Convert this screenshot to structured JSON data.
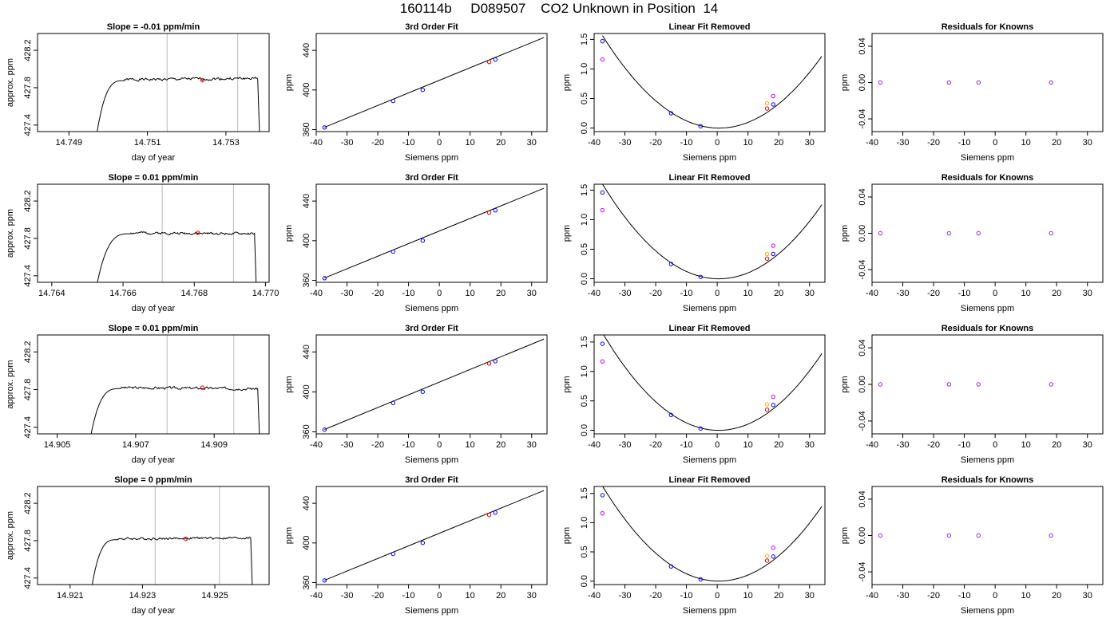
{
  "figure": {
    "title": "160114b     D089507    CO2 Unknown in Position  14"
  },
  "chart_data": [
    {
      "type": "line",
      "title": "Slope =  -0.01  ppm/min",
      "xlabel": "day of year",
      "ylabel": "approx. ppm",
      "xlim": [
        14.7482,
        14.7541
      ],
      "ylim": [
        427.33,
        428.38
      ],
      "xticks": [
        14.749,
        14.751,
        14.753
      ],
      "xtick_labels": [
        "14.749",
        "14.751",
        "14.753"
      ],
      "yticks": [
        427.4,
        427.8,
        428.2
      ],
      "ytick_labels": [
        "427.4",
        "427.8",
        "428.2"
      ],
      "vlines": [
        14.7515,
        14.7533
      ],
      "marker": {
        "x": 14.7524,
        "y": 427.88,
        "color": "#e00000"
      },
      "trace": {
        "start": 14.74965,
        "rise_end": 14.7504,
        "end": 14.75387,
        "level": 427.885,
        "tail": 427.9,
        "drift": 0.0,
        "amp": 0.012,
        "seed": 1
      }
    },
    {
      "type": "scatter",
      "title": "3rd Order Fit",
      "xlabel": "Siemens ppm",
      "ylabel": "ppm",
      "xlim": [
        -40,
        35
      ],
      "ylim": [
        358,
        457
      ],
      "xticks": [
        -40,
        -30,
        -20,
        -10,
        0,
        10,
        20,
        30
      ],
      "xtick_labels": [
        "-40",
        "-30",
        "-20",
        "-10",
        "0",
        "10",
        "20",
        "30"
      ],
      "yticks": [
        360,
        400,
        440
      ],
      "ytick_labels": [
        "360",
        "400",
        "440"
      ],
      "fit_line": {
        "x": [
          -37.3,
          34
        ],
        "y": [
          362.4,
          452.9
        ]
      },
      "series": [
        {
          "name": "",
          "color": "#0000ff",
          "x": [
            -37.3,
            -15,
            -5.4,
            18.2
          ],
          "y": [
            362.2,
            388.9,
            400.1,
            430.7
          ]
        },
        {
          "name": "",
          "color": "#e00000",
          "x": [
            16.2
          ],
          "y": [
            428.3
          ]
        }
      ]
    },
    {
      "type": "scatter",
      "title": "Linear Fit Removed",
      "xlabel": "Siemens ppm",
      "ylabel": "ppm",
      "xlim": [
        -40,
        35
      ],
      "ylim": [
        -0.06,
        1.6
      ],
      "xticks": [
        -40,
        -30,
        -20,
        -10,
        0,
        10,
        20,
        30
      ],
      "xtick_labels": [
        "-40",
        "-30",
        "-20",
        "-10",
        "0",
        "10",
        "20",
        "30"
      ],
      "yticks": [
        0.0,
        0.5,
        1.0,
        1.5
      ],
      "ytick_labels": [
        "0.0",
        "0.5",
        "1.0",
        "1.5"
      ],
      "curve": {
        "a": 0.00109,
        "b": -0.0013,
        "xmin": -37.3,
        "xmax": 34
      },
      "series": [
        {
          "name": "",
          "color": "#0000ff",
          "x": [
            -37.3,
            -15,
            -5.4,
            18.2
          ],
          "y": [
            1.47,
            0.25,
            0.03,
            0.4
          ]
        },
        {
          "name": "",
          "color": "#cc00ff",
          "x": [
            -37.3,
            18.2
          ],
          "y": [
            1.16,
            0.54
          ]
        },
        {
          "name": "",
          "color": "#ffaa00",
          "x": [
            16.2
          ],
          "y": [
            0.42
          ]
        },
        {
          "name": "",
          "color": "#e00000",
          "x": [
            16.2
          ],
          "y": [
            0.33
          ]
        }
      ]
    },
    {
      "type": "scatter",
      "title": "Residuals for Knowns",
      "xlabel": "Siemens ppm",
      "ylabel": "ppm",
      "xlim": [
        -40,
        35
      ],
      "ylim": [
        -0.054,
        0.054
      ],
      "xticks": [
        -40,
        -30,
        -20,
        -10,
        0,
        10,
        20,
        30
      ],
      "xtick_labels": [
        "-40",
        "-30",
        "-20",
        "-10",
        "0",
        "10",
        "20",
        "30"
      ],
      "yticks": [
        -0.04,
        0.0,
        0.04
      ],
      "ytick_labels": [
        "-0.04",
        "0.00",
        "0.04"
      ],
      "series": [
        {
          "name": "",
          "color": "#8a2be2",
          "x": [
            -37.3,
            -15,
            -5.4,
            18.2
          ],
          "y": [
            0,
            0,
            0,
            0
          ]
        }
      ]
    },
    {
      "type": "line",
      "title": "Slope =  0.01  ppm/min",
      "xlabel": "day of year",
      "ylabel": "approx. ppm",
      "xlim": [
        14.7636,
        14.7701
      ],
      "ylim": [
        427.33,
        428.38
      ],
      "xticks": [
        14.764,
        14.766,
        14.768,
        14.77
      ],
      "xtick_labels": [
        "14.764",
        "14.766",
        "14.768",
        "14.770"
      ],
      "yticks": [
        427.4,
        427.8,
        428.2
      ],
      "ytick_labels": [
        "427.4",
        "427.8",
        "428.2"
      ],
      "vlines": [
        14.7671,
        14.7691
      ],
      "marker": {
        "x": 14.7681,
        "y": 427.86,
        "color": "#e00000"
      },
      "trace": {
        "start": 14.76518,
        "rise_end": 14.7662,
        "end": 14.76975,
        "level": 427.86,
        "tail": 427.85,
        "drift": 0.0,
        "amp": 0.01,
        "seed": 2
      }
    },
    {
      "type": "scatter",
      "title": "3rd Order Fit",
      "xlabel": "Siemens ppm",
      "ylabel": "ppm",
      "xlim": [
        -40,
        35
      ],
      "ylim": [
        358,
        457
      ],
      "xticks": [
        -40,
        -30,
        -20,
        -10,
        0,
        10,
        20,
        30
      ],
      "xtick_labels": [
        "-40",
        "-30",
        "-20",
        "-10",
        "0",
        "10",
        "20",
        "30"
      ],
      "yticks": [
        360,
        400,
        440
      ],
      "ytick_labels": [
        "360",
        "400",
        "440"
      ],
      "fit_line": {
        "x": [
          -37.3,
          34
        ],
        "y": [
          362.4,
          452.9
        ]
      },
      "series": [
        {
          "name": "",
          "color": "#0000ff",
          "x": [
            -37.3,
            -15,
            -5.4,
            18.2
          ],
          "y": [
            362.2,
            388.9,
            400.1,
            430.7
          ]
        },
        {
          "name": "",
          "color": "#e00000",
          "x": [
            16.2
          ],
          "y": [
            428.3
          ]
        }
      ]
    },
    {
      "type": "scatter",
      "title": "Linear Fit Removed",
      "xlabel": "Siemens ppm",
      "ylabel": "ppm",
      "xlim": [
        -40,
        35
      ],
      "ylim": [
        -0.06,
        1.6
      ],
      "xticks": [
        -40,
        -30,
        -20,
        -10,
        0,
        10,
        20,
        30
      ],
      "xtick_labels": [
        "-40",
        "-30",
        "-20",
        "-10",
        "0",
        "10",
        "20",
        "30"
      ],
      "yticks": [
        0.0,
        0.5,
        1.0,
        1.5
      ],
      "ytick_labels": [
        "0.0",
        "0.5",
        "1.0",
        "1.5"
      ],
      "curve": {
        "a": 0.00112,
        "b": -0.0012,
        "xmin": -37.3,
        "xmax": 34
      },
      "series": [
        {
          "name": "",
          "color": "#0000ff",
          "x": [
            -37.3,
            -15,
            -5.4,
            18.2
          ],
          "y": [
            1.46,
            0.25,
            0.03,
            0.42
          ]
        },
        {
          "name": "",
          "color": "#cc00ff",
          "x": [
            -37.3,
            18.2
          ],
          "y": [
            1.16,
            0.56
          ]
        },
        {
          "name": "",
          "color": "#ffaa00",
          "x": [
            16.2
          ],
          "y": [
            0.42
          ]
        },
        {
          "name": "",
          "color": "#e00000",
          "x": [
            16.2
          ],
          "y": [
            0.34
          ]
        }
      ]
    },
    {
      "type": "scatter",
      "title": "Residuals for Knowns",
      "xlabel": "Siemens ppm",
      "ylabel": "ppm",
      "xlim": [
        -40,
        35
      ],
      "ylim": [
        -0.054,
        0.054
      ],
      "xticks": [
        -40,
        -30,
        -20,
        -10,
        0,
        10,
        20,
        30
      ],
      "xtick_labels": [
        "-40",
        "-30",
        "-20",
        "-10",
        "0",
        "10",
        "20",
        "30"
      ],
      "yticks": [
        -0.04,
        0.0,
        0.04
      ],
      "ytick_labels": [
        "-0.04",
        "0.00",
        "0.04"
      ],
      "series": [
        {
          "name": "",
          "color": "#8a2be2",
          "x": [
            -37.3,
            -15,
            -5.4,
            18.2
          ],
          "y": [
            0,
            0,
            0,
            0
          ]
        }
      ]
    },
    {
      "type": "line",
      "title": "Slope =  0.01  ppm/min",
      "xlabel": "day of year",
      "ylabel": "approx. ppm",
      "xlim": [
        14.9045,
        14.9104
      ],
      "ylim": [
        427.33,
        428.38
      ],
      "xticks": [
        14.905,
        14.907,
        14.909
      ],
      "xtick_labels": [
        "14.905",
        "14.907",
        "14.909"
      ],
      "yticks": [
        427.4,
        427.8,
        428.2
      ],
      "ytick_labels": [
        "427.4",
        "427.8",
        "428.2"
      ],
      "vlines": [
        14.9078,
        14.9095
      ],
      "marker": {
        "x": 14.9087,
        "y": 427.82,
        "color": "#e00000"
      },
      "trace": {
        "start": 14.90578,
        "rise_end": 14.9066,
        "end": 14.91017,
        "level": 427.82,
        "tail": 427.81,
        "drift": 0.0,
        "amp": 0.011,
        "seed": 3
      }
    },
    {
      "type": "scatter",
      "title": "3rd Order Fit",
      "xlabel": "Siemens ppm",
      "ylabel": "ppm",
      "xlim": [
        -40,
        35
      ],
      "ylim": [
        358,
        457
      ],
      "xticks": [
        -40,
        -30,
        -20,
        -10,
        0,
        10,
        20,
        30
      ],
      "xtick_labels": [
        "-40",
        "-30",
        "-20",
        "-10",
        "0",
        "10",
        "20",
        "30"
      ],
      "yticks": [
        360,
        400,
        440
      ],
      "ytick_labels": [
        "360",
        "400",
        "440"
      ],
      "fit_line": {
        "x": [
          -37.3,
          34
        ],
        "y": [
          362.4,
          452.9
        ]
      },
      "series": [
        {
          "name": "",
          "color": "#0000ff",
          "x": [
            -37.3,
            -15,
            -5.4,
            18.2
          ],
          "y": [
            362.2,
            388.9,
            400.1,
            430.7
          ]
        },
        {
          "name": "",
          "color": "#e00000",
          "x": [
            16.2
          ],
          "y": [
            428.3
          ]
        }
      ]
    },
    {
      "type": "scatter",
      "title": "Linear Fit Removed",
      "xlabel": "Siemens ppm",
      "ylabel": "ppm",
      "xlim": [
        -40,
        35
      ],
      "ylim": [
        -0.06,
        1.62
      ],
      "xticks": [
        -40,
        -30,
        -20,
        -10,
        0,
        10,
        20,
        30
      ],
      "xtick_labels": [
        "-40",
        "-30",
        "-20",
        "-10",
        "0",
        "10",
        "20",
        "30"
      ],
      "yticks": [
        0.0,
        0.5,
        1.0,
        1.5
      ],
      "ytick_labels": [
        "0.0",
        "0.5",
        "1.0",
        "1.5"
      ],
      "curve": {
        "a": 0.00116,
        "b": -0.0011,
        "xmin": -37.3,
        "xmax": 34
      },
      "series": [
        {
          "name": "",
          "color": "#0000ff",
          "x": [
            -37.3,
            -15,
            -5.4,
            18.2
          ],
          "y": [
            1.47,
            0.26,
            0.03,
            0.43
          ]
        },
        {
          "name": "",
          "color": "#cc00ff",
          "x": [
            -37.3,
            18.2
          ],
          "y": [
            1.17,
            0.57
          ]
        },
        {
          "name": "",
          "color": "#ffaa00",
          "x": [
            16.2
          ],
          "y": [
            0.44
          ]
        },
        {
          "name": "",
          "color": "#e00000",
          "x": [
            16.2
          ],
          "y": [
            0.35
          ]
        }
      ]
    },
    {
      "type": "scatter",
      "title": "Residuals for Knowns",
      "xlabel": "Siemens ppm",
      "ylabel": "ppm",
      "xlim": [
        -40,
        35
      ],
      "ylim": [
        -0.054,
        0.054
      ],
      "xticks": [
        -40,
        -30,
        -20,
        -10,
        0,
        10,
        20,
        30
      ],
      "xtick_labels": [
        "-40",
        "-30",
        "-20",
        "-10",
        "0",
        "10",
        "20",
        "30"
      ],
      "yticks": [
        -0.04,
        0.0,
        0.04
      ],
      "ytick_labels": [
        "-0.04",
        "0.00",
        "0.04"
      ],
      "series": [
        {
          "name": "",
          "color": "#8a2be2",
          "x": [
            -37.3,
            -15,
            -5.4,
            18.2
          ],
          "y": [
            0,
            0,
            0,
            0
          ]
        }
      ]
    },
    {
      "type": "line",
      "title": "Slope =  0  ppm/min",
      "xlabel": "day of year",
      "ylabel": "approx. ppm",
      "xlim": [
        14.9201,
        14.9265
      ],
      "ylim": [
        427.33,
        428.38
      ],
      "xticks": [
        14.921,
        14.923,
        14.925
      ],
      "xtick_labels": [
        "14.921",
        "14.923",
        "14.925"
      ],
      "yticks": [
        427.4,
        427.8,
        428.2
      ],
      "ytick_labels": [
        "427.4",
        "427.8",
        "428.2"
      ],
      "vlines": [
        14.92335,
        14.92513
      ],
      "marker": {
        "x": 14.9242,
        "y": 427.82,
        "color": "#e00000"
      },
      "trace": {
        "start": 14.92153,
        "rise_end": 14.9223,
        "end": 14.92605,
        "level": 427.82,
        "tail": 427.83,
        "drift": 0.0,
        "amp": 0.01,
        "seed": 4
      }
    },
    {
      "type": "scatter",
      "title": "3rd Order Fit",
      "xlabel": "Siemens ppm",
      "ylabel": "ppm",
      "xlim": [
        -40,
        35
      ],
      "ylim": [
        358,
        457
      ],
      "xticks": [
        -40,
        -30,
        -20,
        -10,
        0,
        10,
        20,
        30
      ],
      "xtick_labels": [
        "-40",
        "-30",
        "-20",
        "-10",
        "0",
        "10",
        "20",
        "30"
      ],
      "yticks": [
        360,
        400,
        440
      ],
      "ytick_labels": [
        "360",
        "400",
        "440"
      ],
      "fit_line": {
        "x": [
          -37.3,
          34
        ],
        "y": [
          362.4,
          452.9
        ]
      },
      "series": [
        {
          "name": "",
          "color": "#0000ff",
          "x": [
            -37.3,
            -15,
            -5.4,
            18.2
          ],
          "y": [
            362.2,
            388.9,
            400.1,
            430.7
          ]
        },
        {
          "name": "",
          "color": "#e00000",
          "x": [
            16.2
          ],
          "y": [
            428.3
          ]
        }
      ]
    },
    {
      "type": "scatter",
      "title": "Linear Fit Removed",
      "xlabel": "Siemens ppm",
      "ylabel": "ppm",
      "xlim": [
        -40,
        35
      ],
      "ylim": [
        -0.06,
        1.62
      ],
      "xticks": [
        -40,
        -30,
        -20,
        -10,
        0,
        10,
        20,
        30
      ],
      "xtick_labels": [
        "-40",
        "-30",
        "-20",
        "-10",
        "0",
        "10",
        "20",
        "30"
      ],
      "yticks": [
        0.0,
        0.5,
        1.0,
        1.5
      ],
      "ytick_labels": [
        "0.0",
        "0.5",
        "1.0",
        "1.5"
      ],
      "curve": {
        "a": 0.00114,
        "b": -0.0011,
        "xmin": -37.3,
        "xmax": 34
      },
      "series": [
        {
          "name": "",
          "color": "#0000ff",
          "x": [
            -37.3,
            -15,
            -5.4,
            18.2
          ],
          "y": [
            1.47,
            0.25,
            0.03,
            0.42
          ]
        },
        {
          "name": "",
          "color": "#cc00ff",
          "x": [
            -37.3,
            18.2
          ],
          "y": [
            1.16,
            0.57
          ]
        },
        {
          "name": "",
          "color": "#ffaa00",
          "x": [
            16.2
          ],
          "y": [
            0.43
          ]
        },
        {
          "name": "",
          "color": "#e00000",
          "x": [
            16.2
          ],
          "y": [
            0.35
          ]
        }
      ]
    },
    {
      "type": "scatter",
      "title": "Residuals for Knowns",
      "xlabel": "Siemens ppm",
      "ylabel": "ppm",
      "xlim": [
        -40,
        35
      ],
      "ylim": [
        -0.054,
        0.054
      ],
      "xticks": [
        -40,
        -30,
        -20,
        -10,
        0,
        10,
        20,
        30
      ],
      "xtick_labels": [
        "-40",
        "-30",
        "-20",
        "-10",
        "0",
        "10",
        "20",
        "30"
      ],
      "yticks": [
        -0.04,
        0.0,
        0.04
      ],
      "ytick_labels": [
        "-0.04",
        "0.00",
        "0.04"
      ],
      "series": [
        {
          "name": "",
          "color": "#8a2be2",
          "x": [
            -37.3,
            -15,
            -5.4,
            18.2
          ],
          "y": [
            0,
            0,
            0,
            0
          ]
        }
      ]
    }
  ]
}
